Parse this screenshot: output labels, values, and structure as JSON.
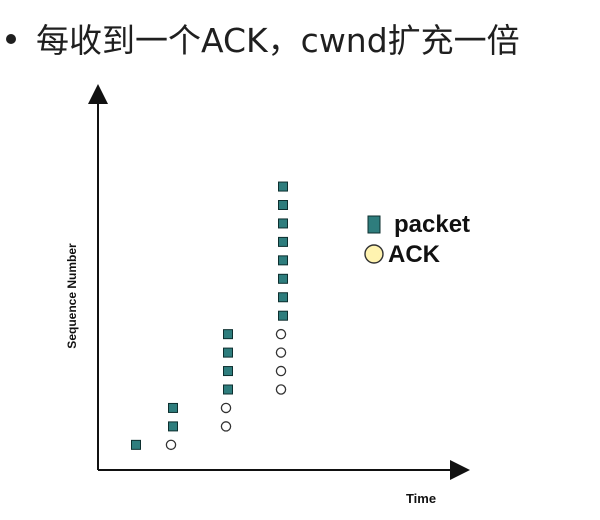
{
  "heading": {
    "text": "每收到一个ACK，cwnd扩充一倍"
  },
  "chart_data": {
    "type": "scatter",
    "title": "",
    "xlabel": "Time",
    "ylabel": "Sequence Number",
    "grid": false,
    "legend_position": "right",
    "series": [
      {
        "name": "packet",
        "marker": "square",
        "color": "#2e7d7d",
        "points": [
          {
            "x": 1,
            "y": 1
          },
          {
            "x": 2,
            "y": 2
          },
          {
            "x": 2,
            "y": 3
          },
          {
            "x": 3,
            "y": 4
          },
          {
            "x": 3,
            "y": 5
          },
          {
            "x": 3,
            "y": 6
          },
          {
            "x": 3,
            "y": 7
          },
          {
            "x": 4,
            "y": 8
          },
          {
            "x": 4,
            "y": 9
          },
          {
            "x": 4,
            "y": 10
          },
          {
            "x": 4,
            "y": 11
          },
          {
            "x": 4,
            "y": 12
          },
          {
            "x": 4,
            "y": 13
          },
          {
            "x": 4,
            "y": 14
          },
          {
            "x": 4,
            "y": 15
          }
        ]
      },
      {
        "name": "ACK",
        "marker": "circle",
        "color": "#ffffff",
        "points": [
          {
            "x": 2,
            "y": 1
          },
          {
            "x": 3,
            "y": 2
          },
          {
            "x": 3,
            "y": 3
          },
          {
            "x": 4,
            "y": 4
          },
          {
            "x": 4,
            "y": 5
          },
          {
            "x": 4,
            "y": 6
          },
          {
            "x": 4,
            "y": 7
          }
        ]
      }
    ],
    "legend": [
      {
        "label": "packet",
        "marker": "square",
        "color": "#2e7d7d"
      },
      {
        "label": "ACK",
        "marker": "circle",
        "color": "#fff3b0"
      }
    ]
  }
}
